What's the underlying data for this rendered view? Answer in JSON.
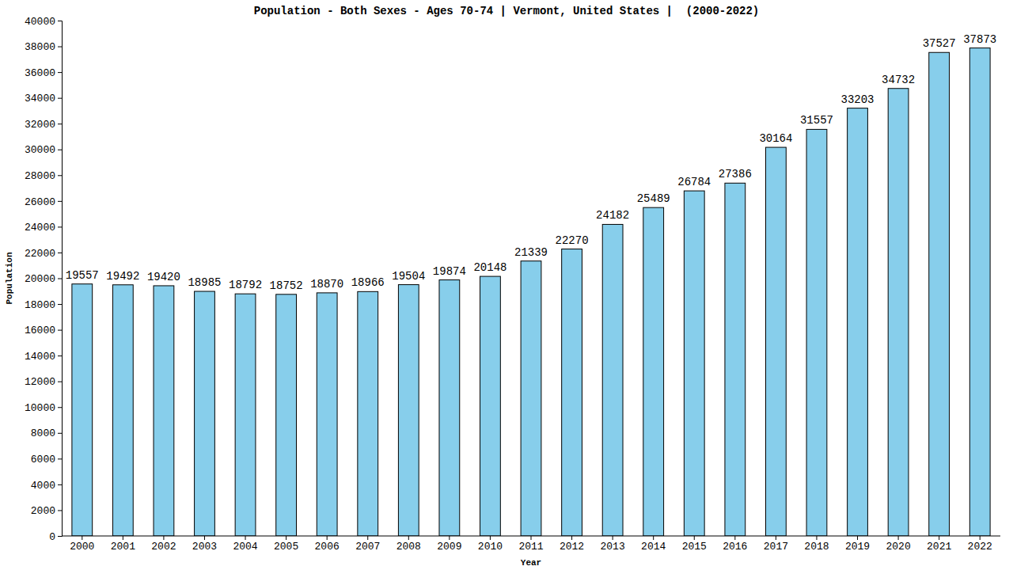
{
  "chart_data": {
    "type": "bar",
    "title": "Population - Both Sexes - Ages 70-74 | Vermont, United States |  (2000-2022)",
    "x_label": "Year",
    "y_label": "Population",
    "categories": [
      "2000",
      "2001",
      "2002",
      "2003",
      "2004",
      "2005",
      "2006",
      "2007",
      "2008",
      "2009",
      "2010",
      "2011",
      "2012",
      "2013",
      "2014",
      "2015",
      "2016",
      "2017",
      "2018",
      "2019",
      "2020",
      "2021",
      "2022"
    ],
    "values": [
      19557,
      19492,
      19420,
      18985,
      18792,
      18752,
      18870,
      18966,
      19504,
      19874,
      20148,
      21339,
      22270,
      24182,
      25489,
      26784,
      27386,
      30164,
      31557,
      33203,
      34732,
      37527,
      37873
    ],
    "color": "#87ceeb",
    "ylim": [
      0,
      40000
    ],
    "yticks": [
      0,
      2000,
      4000,
      6000,
      8000,
      10000,
      12000,
      14000,
      16000,
      18000,
      20000,
      22000,
      24000,
      26000,
      28000,
      30000,
      32000,
      34000,
      36000,
      38000,
      40000
    ],
    "grid": false,
    "data_labels": true
  }
}
